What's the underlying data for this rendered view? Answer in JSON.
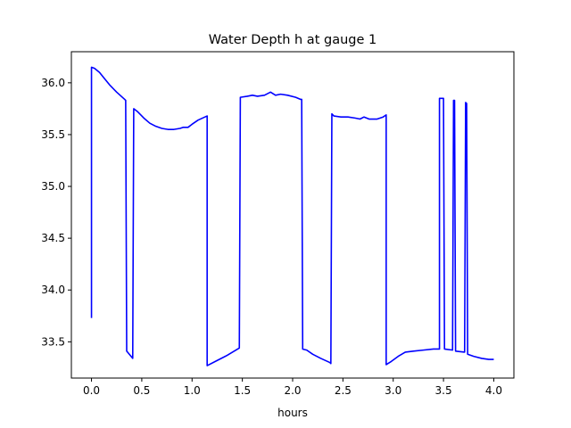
{
  "chart_data": {
    "type": "line",
    "title": "Water Depth h at gauge 1",
    "xlabel": "hours",
    "ylabel": "",
    "xlim": [
      -0.2,
      4.2
    ],
    "ylim": [
      33.15,
      36.3
    ],
    "xticks": [
      "0.0",
      "0.5",
      "1.0",
      "1.5",
      "2.0",
      "2.5",
      "3.0",
      "3.5",
      "4.0"
    ],
    "yticks": [
      "33.5",
      "34.0",
      "34.5",
      "35.0",
      "35.5",
      "36.0"
    ],
    "grid": false,
    "legend": "none",
    "series": [
      {
        "color": "#0000ff",
        "points": [
          [
            0.0,
            33.73
          ],
          [
            0.0,
            36.15
          ],
          [
            0.03,
            36.14
          ],
          [
            0.08,
            36.1
          ],
          [
            0.13,
            36.04
          ],
          [
            0.18,
            35.98
          ],
          [
            0.25,
            35.91
          ],
          [
            0.33,
            35.84
          ],
          [
            0.34,
            35.83
          ],
          [
            0.35,
            33.41
          ],
          [
            0.41,
            33.34
          ],
          [
            0.42,
            35.75
          ],
          [
            0.46,
            35.72
          ],
          [
            0.52,
            35.66
          ],
          [
            0.58,
            35.61
          ],
          [
            0.64,
            35.58
          ],
          [
            0.7,
            35.56
          ],
          [
            0.76,
            35.55
          ],
          [
            0.82,
            35.55
          ],
          [
            0.88,
            35.56
          ],
          [
            0.91,
            35.57
          ],
          [
            0.96,
            35.57
          ],
          [
            1.0,
            35.6
          ],
          [
            1.06,
            35.64
          ],
          [
            1.15,
            35.68
          ],
          [
            1.15,
            33.27
          ],
          [
            1.25,
            33.32
          ],
          [
            1.35,
            33.37
          ],
          [
            1.47,
            33.44
          ],
          [
            1.48,
            35.86
          ],
          [
            1.55,
            35.87
          ],
          [
            1.6,
            35.88
          ],
          [
            1.65,
            35.87
          ],
          [
            1.72,
            35.88
          ],
          [
            1.78,
            35.91
          ],
          [
            1.83,
            35.88
          ],
          [
            1.88,
            35.89
          ],
          [
            1.95,
            35.88
          ],
          [
            2.03,
            35.86
          ],
          [
            2.08,
            35.84
          ],
          [
            2.09,
            35.84
          ],
          [
            2.1,
            33.43
          ],
          [
            2.14,
            33.42
          ],
          [
            2.2,
            33.38
          ],
          [
            2.28,
            33.34
          ],
          [
            2.37,
            33.3
          ],
          [
            2.38,
            33.29
          ],
          [
            2.39,
            35.7
          ],
          [
            2.41,
            35.68
          ],
          [
            2.48,
            35.67
          ],
          [
            2.55,
            35.67
          ],
          [
            2.62,
            35.66
          ],
          [
            2.67,
            35.65
          ],
          [
            2.71,
            35.67
          ],
          [
            2.76,
            35.65
          ],
          [
            2.84,
            35.65
          ],
          [
            2.9,
            35.67
          ],
          [
            2.93,
            35.69
          ],
          [
            2.93,
            33.28
          ],
          [
            2.98,
            33.31
          ],
          [
            3.05,
            33.36
          ],
          [
            3.12,
            33.4
          ],
          [
            3.2,
            33.41
          ],
          [
            3.3,
            33.42
          ],
          [
            3.4,
            33.43
          ],
          [
            3.46,
            33.43
          ],
          [
            3.46,
            35.85
          ],
          [
            3.5,
            35.85
          ],
          [
            3.51,
            33.43
          ],
          [
            3.59,
            33.42
          ],
          [
            3.6,
            35.83
          ],
          [
            3.61,
            35.83
          ],
          [
            3.62,
            33.41
          ],
          [
            3.71,
            33.4
          ],
          [
            3.72,
            35.81
          ],
          [
            3.73,
            35.8
          ],
          [
            3.74,
            33.38
          ],
          [
            3.8,
            33.36
          ],
          [
            3.88,
            33.34
          ],
          [
            3.95,
            33.33
          ],
          [
            4.0,
            33.33
          ]
        ]
      }
    ]
  }
}
